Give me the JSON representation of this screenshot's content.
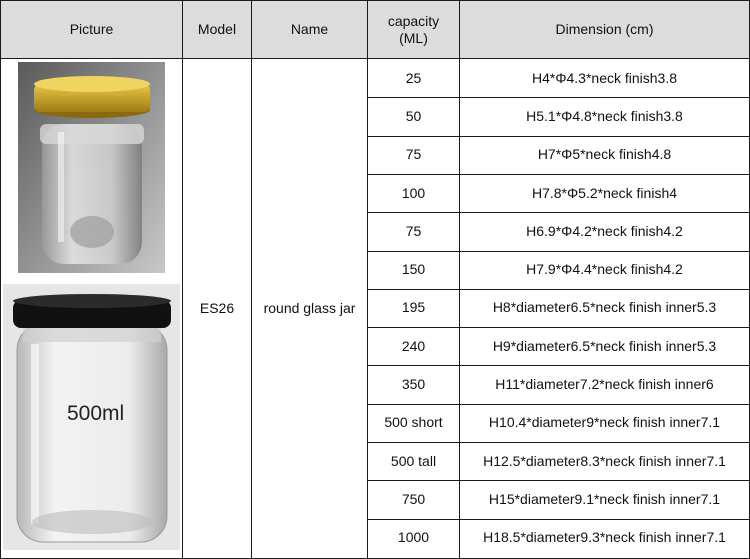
{
  "headers": {
    "picture": "Picture",
    "model": "Model",
    "name": "Name",
    "capacity": "capacity\n(ML)",
    "dimension": "Dimension (cm)"
  },
  "model": "ES26",
  "name": "round glass jar",
  "photo_label": "500ml",
  "rows": [
    {
      "capacity": "25",
      "dimension": "H4*Φ4.3*neck finish3.8"
    },
    {
      "capacity": "50",
      "dimension": "H5.1*Φ4.8*neck finish3.8"
    },
    {
      "capacity": "75",
      "dimension": "H7*Φ5*neck finish4.8"
    },
    {
      "capacity": "100",
      "dimension": "H7.8*Φ5.2*neck finish4"
    },
    {
      "capacity": "75",
      "dimension": "H6.9*Φ4.2*neck finish4.2"
    },
    {
      "capacity": "150",
      "dimension": "H7.9*Φ4.4*neck finish4.2"
    },
    {
      "capacity": "195",
      "dimension": "H8*diameter6.5*neck finish inner5.3"
    },
    {
      "capacity": "240",
      "dimension": "H9*diameter6.5*neck finish inner5.3"
    },
    {
      "capacity": "350",
      "dimension": "H11*diameter7.2*neck finish inner6"
    },
    {
      "capacity": "500 short",
      "dimension": "H10.4*diameter9*neck finish inner7.1"
    },
    {
      "capacity": "500 tall",
      "dimension": "H12.5*diameter8.3*neck finish inner7.1"
    },
    {
      "capacity": "750",
      "dimension": "H15*diameter9.1*neck finish inner7.1"
    },
    {
      "capacity": "1000",
      "dimension": "H18.5*diameter9.3*neck finish inner7.1"
    }
  ],
  "colors": {
    "header_bg": "#dcdcdc",
    "gold_lid": "#c9a21c",
    "black_lid": "#111111"
  }
}
